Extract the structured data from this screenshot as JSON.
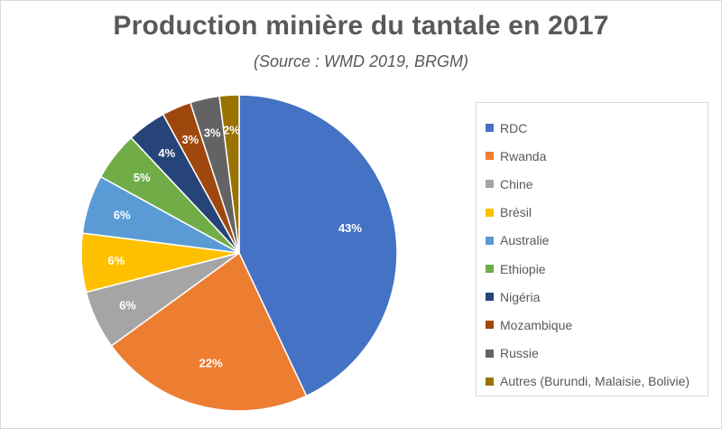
{
  "chart_data": {
    "type": "pie",
    "title": "Production minière du tantale en 2017",
    "subtitle": "(Source : WMD 2019, BRGM)",
    "legend_position": "right",
    "slices": [
      {
        "label": "RDC",
        "value": 43,
        "display": "43%",
        "color": "#4472C4"
      },
      {
        "label": "Rwanda",
        "value": 22,
        "display": "22%",
        "color": "#ED7D31"
      },
      {
        "label": "Chine",
        "value": 6,
        "display": "6%",
        "color": "#A5A5A5"
      },
      {
        "label": "Brésil",
        "value": 6,
        "display": "6%",
        "color": "#FFC000"
      },
      {
        "label": "Australie",
        "value": 6,
        "display": "6%",
        "color": "#5B9BD5"
      },
      {
        "label": "Ethiopie",
        "value": 5,
        "display": "5%",
        "color": "#70AD47"
      },
      {
        "label": "Nigéria",
        "value": 4,
        "display": "4%",
        "color": "#264478"
      },
      {
        "label": "Mozambique",
        "value": 3,
        "display": "3%",
        "color": "#9E480E"
      },
      {
        "label": "Russie",
        "value": 3,
        "display": "3%",
        "color": "#636363"
      },
      {
        "label": "Autres (Burundi, Malaisie, Bolivie)",
        "value": 2,
        "display": "2%",
        "color": "#997300"
      }
    ]
  }
}
